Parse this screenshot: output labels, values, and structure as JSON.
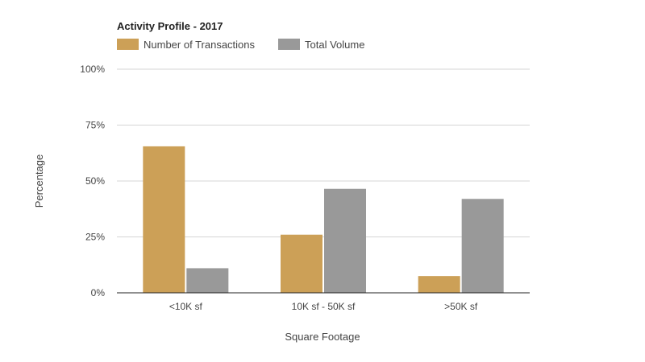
{
  "chart_data": {
    "type": "bar",
    "title": "Activity Profile - 2017",
    "xlabel": "Square Footage",
    "ylabel": "Percentage",
    "categories": [
      "<10K sf",
      "10K sf - 50K sf",
      ">50K sf"
    ],
    "series": [
      {
        "name": "Number of Transactions",
        "values": [
          65.5,
          26,
          7.5
        ],
        "color": "#cca057"
      },
      {
        "name": "Total Volume",
        "values": [
          11,
          46.5,
          42
        ],
        "color": "#999999"
      }
    ],
    "ylim": [
      0,
      100
    ],
    "yticks": [
      {
        "value": 0,
        "label": "0%"
      },
      {
        "value": 25,
        "label": "25%"
      },
      {
        "value": 50,
        "label": "50%"
      },
      {
        "value": 75,
        "label": "75%"
      },
      {
        "value": 100,
        "label": "100%"
      }
    ],
    "grid": true,
    "legend_position": "top-left"
  }
}
